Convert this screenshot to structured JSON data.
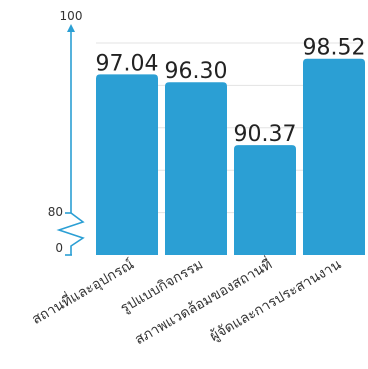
{
  "chart_data": {
    "type": "bar",
    "categories": [
      "สถานที่และอุปกรณ์",
      "รูปแบบกิจกรรม",
      "สภาพแวดล้อมของสถานที่",
      "ผู้จัดและการประสานงาน"
    ],
    "values": [
      97.04,
      96.3,
      90.37,
      98.52
    ],
    "value_labels": [
      "97.04",
      "96.30",
      "90.37",
      "98.52"
    ],
    "y_ticks": [
      "100",
      "80",
      "0"
    ],
    "ylim": [
      80,
      100
    ],
    "axis_break": true,
    "title": "",
    "xlabel": "",
    "ylabel": "",
    "grid": true,
    "colors": {
      "bar": "#2b9fd4",
      "axis": "#2b9fd4",
      "grid": "#e3e3e3",
      "value_text": "#222222",
      "tick_text": "#333333"
    }
  }
}
